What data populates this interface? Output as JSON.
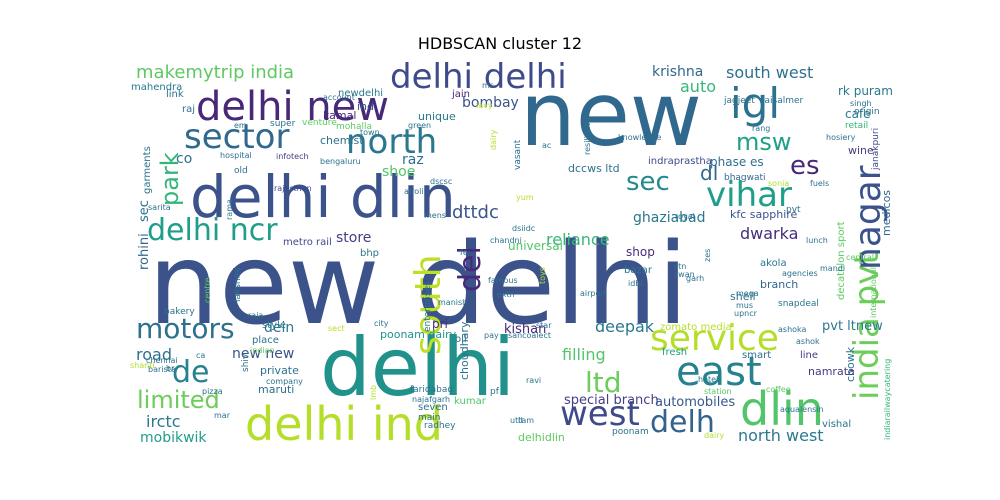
{
  "chart_data": {
    "type": "wordcloud",
    "title": "HDBSCAN cluster 12",
    "words": [
      {
        "text": "new delhi",
        "color": "#3b528b"
      },
      {
        "text": "new",
        "color": "#31688e"
      },
      {
        "text": "delhi dlin",
        "color": "#3b528b"
      },
      {
        "text": "delhi",
        "color": "#21918c"
      },
      {
        "text": "delhi new",
        "color": "#482878"
      },
      {
        "text": "delhi delhi",
        "color": "#3e4a89"
      },
      {
        "text": "igl",
        "color": "#2c728e"
      },
      {
        "text": "delhi ind",
        "color": "#b5de2b"
      },
      {
        "text": "east",
        "color": "#26828e"
      },
      {
        "text": "south",
        "color": "#bddf26"
      },
      {
        "text": "sector",
        "color": "#31688e"
      },
      {
        "text": "north",
        "color": "#2a788e"
      },
      {
        "text": "service",
        "color": "#b5de2b"
      },
      {
        "text": "dlin",
        "color": "#52c569"
      },
      {
        "text": "india pvt",
        "color": "#6ccd5a"
      },
      {
        "text": "nagar",
        "color": "#3b528b"
      },
      {
        "text": "vihar",
        "color": "#1f9e89"
      },
      {
        "text": "west",
        "color": "#3e4a89"
      },
      {
        "text": "delh",
        "color": "#33638d"
      },
      {
        "text": "delhi ncr",
        "color": "#1f9e89"
      },
      {
        "text": "motors",
        "color": "#2c728e"
      },
      {
        "text": "de",
        "color": "#26828e"
      },
      {
        "text": "del",
        "color": "#482878"
      },
      {
        "text": "ltd",
        "color": "#6ccd5a"
      },
      {
        "text": "limited",
        "color": "#6ccd5a"
      },
      {
        "text": "msw",
        "color": "#1fa187"
      },
      {
        "text": "sec",
        "color": "#23898e"
      },
      {
        "text": "es",
        "color": "#482878"
      },
      {
        "text": "park",
        "color": "#32b67a"
      },
      {
        "text": "makemytrip india",
        "color": "#5ec962"
      },
      {
        "text": "south west",
        "color": "#2c728e"
      },
      {
        "text": "north west",
        "color": "#2a788e"
      },
      {
        "text": "dttdc",
        "color": "#39568c"
      },
      {
        "text": "reliance",
        "color": "#35b779"
      },
      {
        "text": "dwarka",
        "color": "#472d7b"
      },
      {
        "text": "ghaziabad",
        "color": "#2a788e"
      },
      {
        "text": "filling",
        "color": "#52c569"
      },
      {
        "text": "road",
        "color": "#2c728e"
      },
      {
        "text": "irctc",
        "color": "#2a788e"
      },
      {
        "text": "mobikwik",
        "color": "#1f9e89"
      },
      {
        "text": "new new",
        "color": "#3b528b"
      },
      {
        "text": "deepak",
        "color": "#2a788e"
      },
      {
        "text": "store",
        "color": "#433e85"
      },
      {
        "text": "dein",
        "color": "#2a788e"
      },
      {
        "text": "auto",
        "color": "#35b779"
      },
      {
        "text": "krishna",
        "color": "#31688e"
      },
      {
        "text": "bombay",
        "color": "#3b528b"
      },
      {
        "text": "shoe",
        "color": "#52c569"
      },
      {
        "text": "raz",
        "color": "#2c728e"
      },
      {
        "text": "dl",
        "color": "#31688e"
      },
      {
        "text": "co",
        "color": "#2c728e"
      },
      {
        "text": "pvt ltnew",
        "color": "#2a788e"
      },
      {
        "text": "special branch",
        "color": "#433e85"
      },
      {
        "text": "automobiles",
        "color": "#39568c"
      },
      {
        "text": "delhidlin",
        "color": "#5ec962"
      },
      {
        "text": "kishan",
        "color": "#482878"
      },
      {
        "text": "poonam dairy",
        "color": "#21918c"
      },
      {
        "text": "zomato media",
        "color": "#b5de2b"
      },
      {
        "text": "indiarailwaycatering",
        "color": "#35b779"
      },
      {
        "text": "medicos",
        "color": "#31688e"
      },
      {
        "text": "kfc sapphire",
        "color": "#3b528b"
      },
      {
        "text": "rohini",
        "color": "#31688e"
      },
      {
        "text": "sec",
        "color": "#2c728e"
      },
      {
        "text": "shop",
        "color": "#472d7b"
      },
      {
        "text": "bazar",
        "color": "#2a788e"
      },
      {
        "text": "pri",
        "color": "#472d7b"
      },
      {
        "text": "dccws ltd",
        "color": "#2c728e"
      },
      {
        "text": "indraprastha",
        "color": "#3e4a89"
      },
      {
        "text": "phase es",
        "color": "#2c728e"
      },
      {
        "text": "bhagwati",
        "color": "#31688e"
      },
      {
        "text": "cafe",
        "color": "#2a788e"
      },
      {
        "text": "retail",
        "color": "#32b67a"
      },
      {
        "text": "wine",
        "color": "#433e85"
      },
      {
        "text": "rk puram",
        "color": "#2a788e"
      },
      {
        "text": "janakpuri",
        "color": "#3e4a89"
      },
      {
        "text": "unique",
        "color": "#2a788e"
      },
      {
        "text": "chemist",
        "color": "#2c728e"
      },
      {
        "text": "kamal",
        "color": "#472d7b"
      },
      {
        "text": "ind",
        "color": "#3b528b"
      },
      {
        "text": "newdelhi",
        "color": "#2a788e"
      },
      {
        "text": "jain",
        "color": "#482878"
      },
      {
        "text": "mahendra",
        "color": "#2a788e"
      },
      {
        "text": "link",
        "color": "#2c728e"
      },
      {
        "text": "garments",
        "color": "#2c728e"
      },
      {
        "text": "bengaluru",
        "color": "#2c728e"
      },
      {
        "text": "infotech",
        "color": "#433e85"
      },
      {
        "text": "rajasthan",
        "color": "#3e4a89"
      },
      {
        "text": "metro rail",
        "color": "#3e4a89"
      },
      {
        "text": "bhp",
        "color": "#2a788e"
      },
      {
        "text": "universal",
        "color": "#52c569"
      },
      {
        "text": "style",
        "color": "#2c728e"
      },
      {
        "text": "oil",
        "color": "#2c728e"
      },
      {
        "text": "chowk",
        "color": "#2c728e"
      },
      {
        "text": "branch",
        "color": "#31688e"
      },
      {
        "text": "shell",
        "color": "#2c728e"
      },
      {
        "text": "akola",
        "color": "#2a788e"
      },
      {
        "text": "decathlon sport",
        "color": "#5ec962"
      },
      {
        "text": "namrata",
        "color": "#433e85"
      },
      {
        "text": "vishal",
        "color": "#2c728e"
      },
      {
        "text": "line",
        "color": "#433e85"
      },
      {
        "text": "smart",
        "color": "#2c728e"
      },
      {
        "text": "fresh",
        "color": "#1f9e89"
      },
      {
        "text": "private",
        "color": "#2c728e"
      },
      {
        "text": "maruti",
        "color": "#2c728e"
      },
      {
        "text": "faridabad",
        "color": "#2c728e"
      },
      {
        "text": "choudhary",
        "color": "#2c728e"
      },
      {
        "text": "seven",
        "color": "#2c728e"
      },
      {
        "text": "najafgarh",
        "color": "#2c728e"
      },
      {
        "text": "kumar",
        "color": "#52c569"
      },
      {
        "text": "radhey",
        "color": "#2c728e"
      },
      {
        "text": "agencies",
        "color": "#2c728e"
      },
      {
        "text": "central",
        "color": "#5ec962"
      },
      {
        "text": "snapdeal",
        "color": "#2c728e"
      },
      {
        "text": "coffee",
        "color": "#5ec962"
      },
      {
        "text": "mandi",
        "color": "#2c728e"
      },
      {
        "text": "aqualensin",
        "color": "#2c728e"
      },
      {
        "text": "hotel",
        "color": "#2c728e"
      },
      {
        "text": "lakshmi",
        "color": "#2c728e"
      },
      {
        "text": "sarita",
        "color": "#2c728e"
      },
      {
        "text": "rama",
        "color": "#2c728e"
      },
      {
        "text": "old",
        "color": "#2c728e"
      },
      {
        "text": "raja",
        "color": "#2c728e"
      },
      {
        "text": "place",
        "color": "#2c728e"
      },
      {
        "text": "bakery",
        "color": "#2c728e"
      },
      {
        "text": "pizza",
        "color": "#2c728e"
      },
      {
        "text": "centre",
        "color": "#5ec962"
      },
      {
        "text": "shiv",
        "color": "#2c728e"
      },
      {
        "text": "barista",
        "color": "#2c728e"
      },
      {
        "text": "chennai",
        "color": "#2c728e"
      },
      {
        "text": "shanti",
        "color": "#b5de2b"
      },
      {
        "text": "ca",
        "color": "#2c728e"
      },
      {
        "text": "br",
        "color": "#2c728e"
      },
      {
        "text": "company",
        "color": "#2c728e"
      },
      {
        "text": "hospital",
        "color": "#2c728e"
      },
      {
        "text": "super",
        "color": "#2c728e"
      },
      {
        "text": "venture",
        "color": "#5ec962"
      },
      {
        "text": "mohalla",
        "color": "#5ec962"
      },
      {
        "text": "town",
        "color": "#2c728e"
      },
      {
        "text": "green",
        "color": "#2c728e"
      },
      {
        "text": "raj",
        "color": "#2c728e"
      },
      {
        "text": "em",
        "color": "#2c728e"
      },
      {
        "text": "account",
        "color": "#2c728e"
      },
      {
        "text": "lavy",
        "color": "#b5de2b"
      },
      {
        "text": "ms",
        "color": "#2c728e"
      },
      {
        "text": "resilient",
        "color": "#2c728e"
      },
      {
        "text": "jagjeet",
        "color": "#2c728e"
      },
      {
        "text": "jaisalmer",
        "color": "#2c728e"
      },
      {
        "text": "singh",
        "color": "#2c728e"
      },
      {
        "text": "origin",
        "color": "#2c728e"
      },
      {
        "text": "knowledge",
        "color": "#2c728e"
      },
      {
        "text": "rang",
        "color": "#2c728e"
      },
      {
        "text": "hosiery",
        "color": "#2c728e"
      },
      {
        "text": "fuels",
        "color": "#2c728e"
      },
      {
        "text": "sonia",
        "color": "#b5de2b"
      },
      {
        "text": "vasant",
        "color": "#2c728e"
      },
      {
        "text": "dairy",
        "color": "#b5de2b"
      },
      {
        "text": "ac",
        "color": "#2c728e"
      },
      {
        "text": "dscsc",
        "color": "#2c728e"
      },
      {
        "text": "airoli",
        "color": "#2c728e"
      },
      {
        "text": "yum",
        "color": "#b5de2b"
      },
      {
        "text": "mens",
        "color": "#2c728e"
      },
      {
        "text": "dsiidc",
        "color": "#2c728e"
      },
      {
        "text": "chandni",
        "color": "#2c728e"
      },
      {
        "text": "royal",
        "color": "#2c728e"
      },
      {
        "text": "pvt",
        "color": "#2c728e"
      },
      {
        "text": "lunch",
        "color": "#2c728e"
      },
      {
        "text": "zes",
        "color": "#2c728e"
      },
      {
        "text": "toys",
        "color": "#b5de2b"
      },
      {
        "text": "fe",
        "color": "#2c728e"
      },
      {
        "text": "enterprises",
        "color": "#2c728e"
      },
      {
        "text": "famous",
        "color": "#2c728e"
      },
      {
        "text": "idbi",
        "color": "#2c728e"
      },
      {
        "text": "stn",
        "color": "#2c728e"
      },
      {
        "text": "garh",
        "color": "#2c728e"
      },
      {
        "text": "upncr",
        "color": "#2c728e"
      },
      {
        "text": "mega",
        "color": "#2c728e"
      },
      {
        "text": "mus",
        "color": "#2c728e"
      },
      {
        "text": "international",
        "color": "#5ec962"
      },
      {
        "text": "indian",
        "color": "#5ec962"
      },
      {
        "text": "manish",
        "color": "#2c728e"
      },
      {
        "text": "extn",
        "color": "#2c728e"
      },
      {
        "text": "airport",
        "color": "#2c728e"
      },
      {
        "text": "city",
        "color": "#2c728e"
      },
      {
        "text": "sect",
        "color": "#b5de2b"
      },
      {
        "text": "star",
        "color": "#2c728e"
      },
      {
        "text": "sancoalect",
        "color": "#2c728e"
      },
      {
        "text": "pay",
        "color": "#2c728e"
      },
      {
        "text": "ashoka",
        "color": "#2c728e"
      },
      {
        "text": "ashok",
        "color": "#2c728e"
      },
      {
        "text": "pf",
        "color": "#2c728e"
      },
      {
        "text": "ravi",
        "color": "#2c728e"
      },
      {
        "text": "station",
        "color": "#5ec962"
      },
      {
        "text": "main",
        "color": "#2c728e"
      },
      {
        "text": "lt",
        "color": "#2c728e"
      },
      {
        "text": "uttam",
        "color": "#2c728e"
      },
      {
        "text": "poonam",
        "color": "#2c728e"
      },
      {
        "text": "dairy",
        "color": "#b5de2b"
      },
      {
        "text": "mar",
        "color": "#2c728e"
      },
      {
        "text": "lmb",
        "color": "#b5de2b"
      },
      {
        "text": "swan",
        "color": "#2c728e"
      }
    ]
  }
}
